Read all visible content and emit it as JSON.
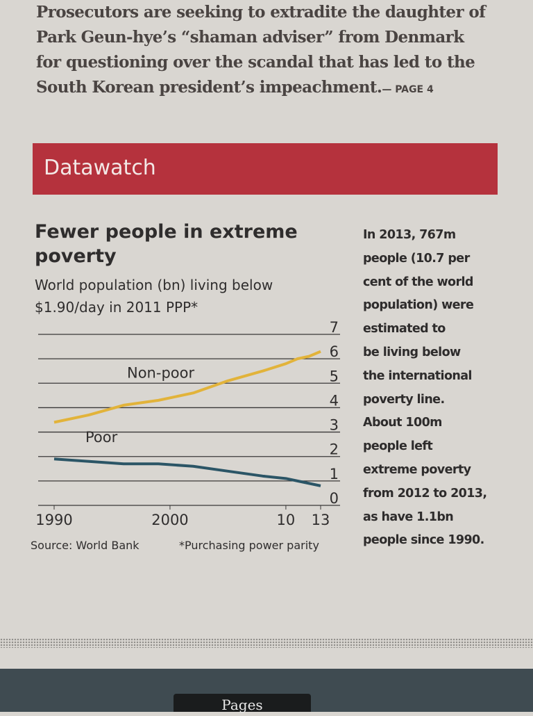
{
  "article": {
    "lines": [
      "Prosecutors are seeking to extradite the daughter of",
      "Park Geun-hye’s “shaman adviser” from Denmark",
      "for questioning over the scandal that has led to the",
      "South Korean president’s impeachment."
    ],
    "page_ref": "— PAGE 4"
  },
  "banner": "Datawatch",
  "chart_data": {
    "type": "line",
    "title_lines": [
      "Fewer people in extreme",
      "poverty"
    ],
    "subtitle_lines": [
      "World population (bn) living below",
      "$1.90/day in 2011 PPP*"
    ],
    "x": [
      1990,
      1993,
      1996,
      1999,
      2002,
      2005,
      2008,
      2010,
      2011,
      2012,
      2013
    ],
    "series": [
      {
        "name": "Non-poor",
        "color": "#e2b33a",
        "values": [
          3.4,
          3.7,
          4.1,
          4.3,
          4.6,
          5.1,
          5.5,
          5.8,
          6.0,
          6.1,
          6.3
        ]
      },
      {
        "name": "Poor",
        "color": "#2b5566",
        "values": [
          1.9,
          1.8,
          1.7,
          1.7,
          1.6,
          1.4,
          1.2,
          1.1,
          1.0,
          0.9,
          0.8
        ]
      }
    ],
    "xlim": [
      1990,
      2013
    ],
    "xticks": [
      1990,
      2000,
      {
        "value": 2010,
        "label": "10"
      },
      {
        "value": 2013,
        "label": "13"
      }
    ],
    "ylim": [
      0,
      7
    ],
    "yticks": [
      0,
      1,
      2,
      3,
      4,
      5,
      6,
      7
    ],
    "grid": true,
    "source": "Source: World Bank",
    "footnote": "*Purchasing power parity"
  },
  "sidebar": [
    "In 2013, 767m",
    "people (10.7 per",
    "cent of the world",
    "population) were",
    "estimated to",
    "be living below",
    "the international",
    "poverty line.",
    "About 100m",
    "people left",
    "extreme poverty",
    "from 2012 to 2013,",
    "as have 1.1bn",
    "people since 1990."
  ],
  "footer": {
    "button": "Pages"
  }
}
